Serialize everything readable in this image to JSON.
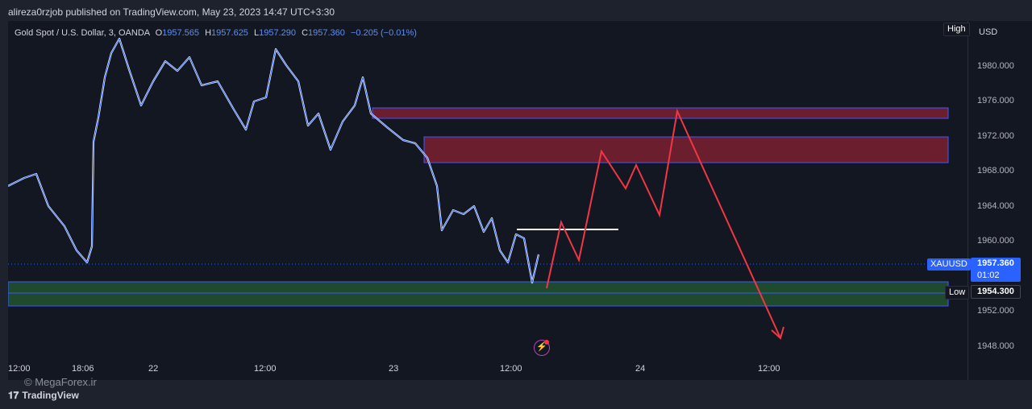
{
  "header": {
    "published_line": "alireza0rzjob published on TradingView.com, May 23, 2023 14:47 UTC+3:30"
  },
  "legend": {
    "symbol": "Gold Spot / U.S. Dollar, 3, OANDA",
    "open_label": "O",
    "open": "1957.565",
    "high_label": "H",
    "high": "1957.625",
    "low_label": "L",
    "low": "1957.290",
    "close_label": "C",
    "close": "1957.360",
    "change": "−0.205 (−0.01%)"
  },
  "price_scale": {
    "currency": "USD",
    "high_badge": "High",
    "ticks": [
      "1980.000",
      "1976.000",
      "1972.000",
      "1968.000",
      "1964.000",
      "1960.000",
      "1952.000",
      "1948.000"
    ],
    "last_symbol": "XAUUSD",
    "last_price": "1957.360",
    "countdown": "01:02",
    "low_label": "Low",
    "low_price": "1954.300"
  },
  "time_axis": {
    "ticks": [
      "12:00",
      "18:06",
      "22",
      "12:00",
      "23",
      "12:00",
      "24",
      "12:00"
    ]
  },
  "footer": {
    "watermark": "© MegaForex.ir",
    "brand": "TradingView"
  },
  "colors": {
    "background": "#131722",
    "candle_up": "#ffffff",
    "candle_down": "#2962ff",
    "supply_zone": "#6b1f2e",
    "demand_zone": "#1f4a2e",
    "projection": "#f23645",
    "last_price": "#2962ff"
  },
  "icons": {
    "alert": "lightning-alert-icon"
  }
}
